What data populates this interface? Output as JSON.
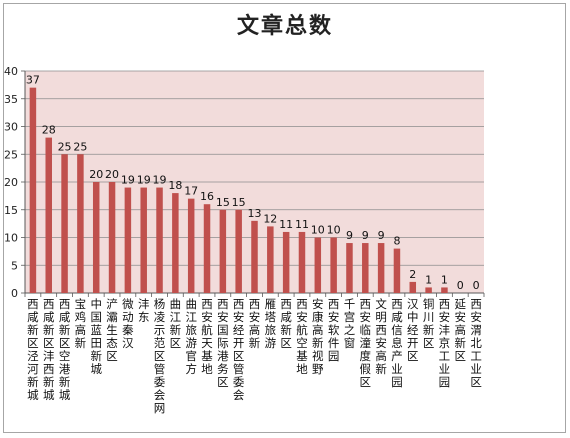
{
  "chart_data": {
    "type": "bar",
    "title": "文章总数",
    "ylim": [
      0,
      40
    ],
    "yticks": [
      0,
      5,
      10,
      15,
      20,
      25,
      30,
      35,
      40
    ],
    "grid": true,
    "legend": "none",
    "categories": [
      "西咸新区泾河新城",
      "西咸新区沣西新城",
      "西咸新区空港新城",
      "宝鸡高新",
      "中国蓝田新城",
      "浐灞生态区",
      "微动秦汉",
      "沣东",
      "杨凌示范区管委会网",
      "曲江新区",
      "曲江旅游官方",
      "西安航天基地",
      "西安国际港务区",
      "西安经开区管委会",
      "西安高新",
      "雁塔旅游",
      "西咸新区",
      "西安航空基地",
      "安康高新视野",
      "西安软件园",
      "千宫之窗",
      "西安临潼度假区",
      "文明西安高新",
      "西咸信息产业园",
      "汉中经开区",
      "铜川新区",
      "西安沣京工业园",
      "延安高新区",
      "西安渭北工业区"
    ],
    "values": [
      37,
      28,
      25,
      25,
      20,
      20,
      19,
      19,
      19,
      18,
      17,
      16,
      15,
      15,
      13,
      12,
      11,
      11,
      10,
      10,
      9,
      9,
      9,
      8,
      2,
      1,
      1,
      0,
      0
    ]
  },
  "colors": {
    "plot_bg": "#f2dcdb",
    "bar": "#c0504d",
    "grid": "#8c8c8c",
    "axis": "#595959"
  }
}
